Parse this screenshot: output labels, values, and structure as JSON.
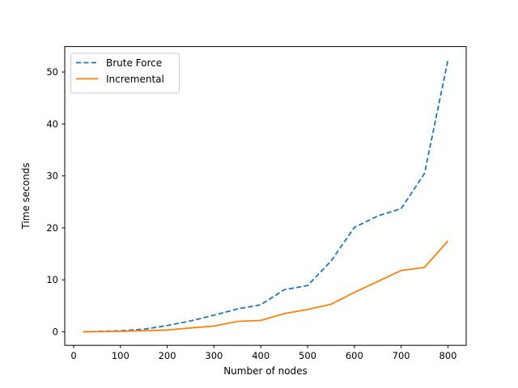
{
  "chart_data": {
    "type": "line",
    "title": "",
    "xlabel": "Number of nodes",
    "ylabel": "Time seconds",
    "x": [
      20,
      50,
      100,
      150,
      200,
      250,
      300,
      350,
      400,
      450,
      500,
      550,
      600,
      650,
      700,
      750,
      800
    ],
    "series": [
      {
        "name": "Brute Force",
        "color": "#1f77b4",
        "line_style": "dashed",
        "values": [
          0.02,
          0.06,
          0.2,
          0.5,
          1.2,
          2.1,
          3.2,
          4.4,
          5.2,
          8.1,
          8.9,
          13.6,
          20.1,
          22.3,
          23.7,
          30.5,
          52.3
        ]
      },
      {
        "name": "Incremental",
        "color": "#ff7f0e",
        "line_style": "solid",
        "values": [
          0.01,
          0.04,
          0.1,
          0.2,
          0.35,
          0.75,
          1.1,
          2.0,
          2.2,
          3.5,
          4.3,
          5.3,
          7.6,
          9.7,
          11.8,
          12.4,
          17.5
        ]
      }
    ],
    "xticks": [
      0,
      100,
      200,
      300,
      400,
      500,
      600,
      700,
      800
    ],
    "yticks": [
      0,
      10,
      20,
      30,
      40,
      50
    ],
    "xlim": [
      -19,
      839
    ],
    "ylim": [
      -2.6,
      54.9
    ],
    "grid": false,
    "legend_position": "upper-left",
    "colors": {
      "spine": "#000000",
      "background": "#ffffff",
      "legend_border": "#cccccc"
    }
  }
}
